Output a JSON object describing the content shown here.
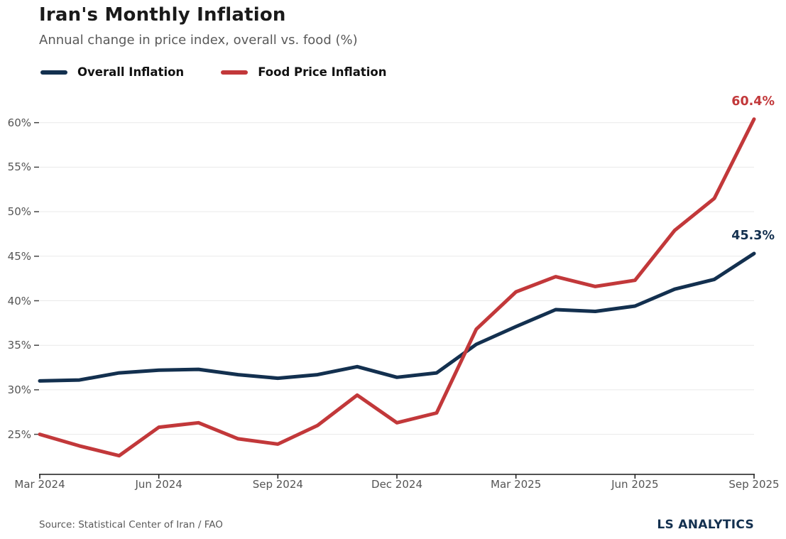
{
  "header": {
    "title": "Iran's Monthly Inflation",
    "subtitle": "Annual change in price index, overall vs. food (%)"
  },
  "legend": [
    {
      "label": "Overall Inflation",
      "color": "#13304F"
    },
    {
      "label": "Food Price Inflation",
      "color": "#C2383A"
    }
  ],
  "chart_data": {
    "type": "line",
    "title": "Iran's Monthly Inflation",
    "subtitle": "Annual change in price index, overall vs. food (%)",
    "x": [
      "Mar 2024",
      "Apr 2024",
      "May 2024",
      "Jun 2024",
      "Jul 2024",
      "Aug 2024",
      "Sep 2024",
      "Oct 2024",
      "Nov 2024",
      "Dec 2024",
      "Jan 2025",
      "Feb 2025",
      "Mar 2025",
      "Apr 2025",
      "May 2025",
      "Jun 2025",
      "Jul 2025",
      "Aug 2025",
      "Sep 2025"
    ],
    "series": [
      {
        "name": "Overall Inflation",
        "color": "#13304F",
        "values": [
          31.0,
          31.1,
          31.9,
          32.2,
          32.3,
          31.7,
          31.3,
          31.7,
          32.6,
          31.4,
          31.9,
          35.1,
          37.1,
          39.0,
          38.8,
          39.4,
          41.3,
          42.4,
          45.3
        ],
        "end_label": "45.3%"
      },
      {
        "name": "Food Price Inflation",
        "color": "#C2383A",
        "values": [
          25.0,
          23.7,
          22.6,
          25.8,
          26.3,
          24.5,
          23.9,
          26.0,
          29.4,
          26.3,
          27.4,
          36.8,
          41.0,
          42.7,
          41.6,
          42.3,
          47.9,
          51.5,
          60.4
        ],
        "end_label": "60.4%"
      }
    ],
    "y_ticks": [
      {
        "value": 25,
        "label": "25%"
      },
      {
        "value": 30,
        "label": "30%"
      },
      {
        "value": 35,
        "label": "35%"
      },
      {
        "value": 40,
        "label": "40%"
      },
      {
        "value": 45,
        "label": "45%"
      },
      {
        "value": 50,
        "label": "50%"
      },
      {
        "value": 55,
        "label": "55%"
      },
      {
        "value": 60,
        "label": "60%"
      }
    ],
    "x_ticks": [
      {
        "index": 0,
        "label": "Mar 2024"
      },
      {
        "index": 3,
        "label": "Jun 2024"
      },
      {
        "index": 6,
        "label": "Sep 2024"
      },
      {
        "index": 9,
        "label": "Dec 2024"
      },
      {
        "index": 12,
        "label": "Mar 2025"
      },
      {
        "index": 15,
        "label": "Jun 2025"
      },
      {
        "index": 18,
        "label": "Sep 2025"
      }
    ],
    "ylim": [
      20.5,
      62
    ],
    "grid": "horizontal",
    "legend_position": "top-left"
  },
  "footer": {
    "source": "Source: Statistical Center of Iran / FAO",
    "brand": "LS ANALYTICS",
    "brand_color": "#13304F"
  }
}
